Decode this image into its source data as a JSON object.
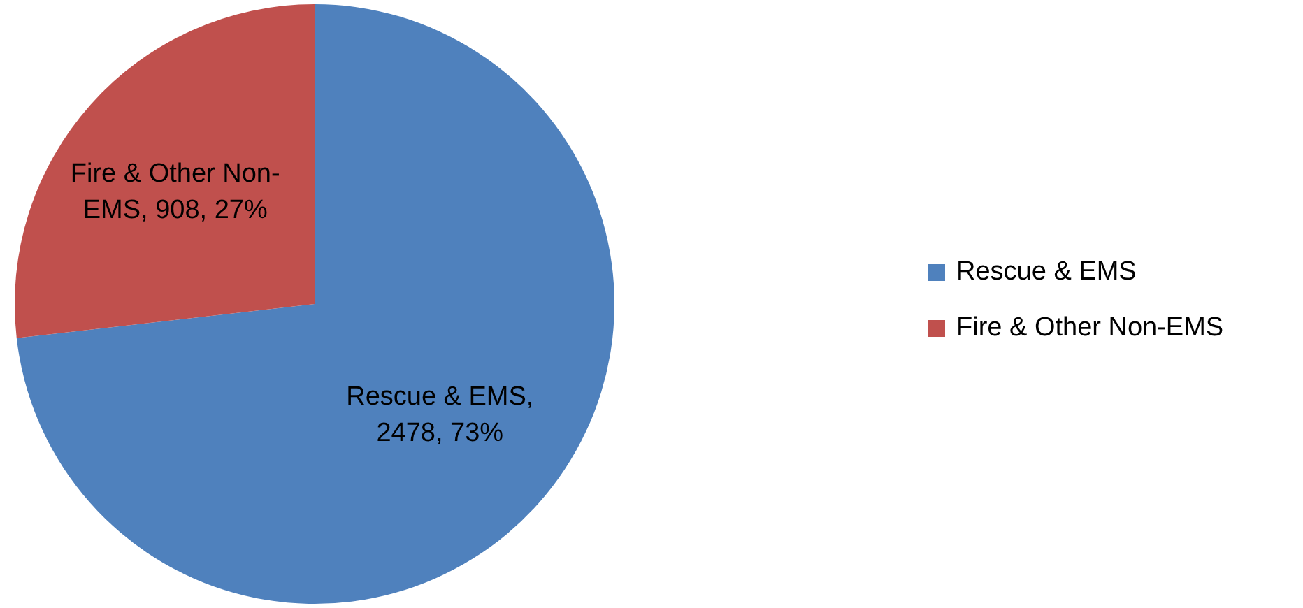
{
  "chart_data": {
    "type": "pie",
    "categories": [
      "Rescue & EMS",
      "Fire & Other Non-EMS"
    ],
    "values": [
      2478,
      908
    ],
    "colors": [
      "#4f81bd",
      "#c0504d"
    ],
    "value_labels": [
      "Rescue & EMS, 2478, 73%",
      "Fire & Other Non-EMS, 908, 27%"
    ],
    "legend": "right"
  }
}
